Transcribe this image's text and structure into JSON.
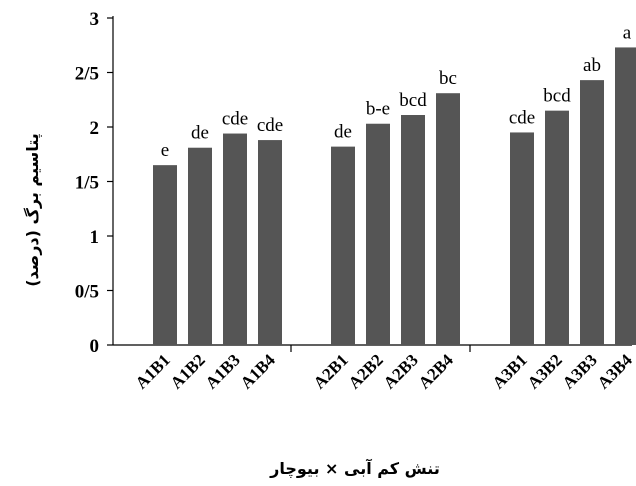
{
  "chart_data": {
    "type": "bar",
    "title": "",
    "xlabel": "تنش کم آبی × بیوچار",
    "ylabel": "پتاسیم برگ (درصد)",
    "ylim": [
      0,
      3
    ],
    "yticks": [
      "0",
      "0/5",
      "1",
      "1/5",
      "2",
      "2/5",
      "3"
    ],
    "ytick_values": [
      0,
      0.5,
      1,
      1.5,
      2,
      2.5,
      3
    ],
    "grid": false,
    "legend": "none",
    "bar_color": "#555555",
    "groups": [
      {
        "categories": [
          "A1B1",
          "A1B2",
          "A1B3",
          "A1B4"
        ],
        "values": [
          1.65,
          1.81,
          1.94,
          1.88
        ],
        "letters": [
          "e",
          "de",
          "cde",
          "cde"
        ]
      },
      {
        "categories": [
          "A2B1",
          "A2B2",
          "A2B3",
          "A2B4"
        ],
        "values": [
          1.82,
          2.03,
          2.11,
          2.31
        ],
        "letters": [
          "de",
          "b-e",
          "bcd",
          "bc"
        ]
      },
      {
        "categories": [
          "A3B1",
          "A3B2",
          "A3B3",
          "A3B4"
        ],
        "values": [
          1.95,
          2.15,
          2.43,
          2.73
        ],
        "letters": [
          "cde",
          "bcd",
          "ab",
          "a"
        ]
      }
    ]
  }
}
